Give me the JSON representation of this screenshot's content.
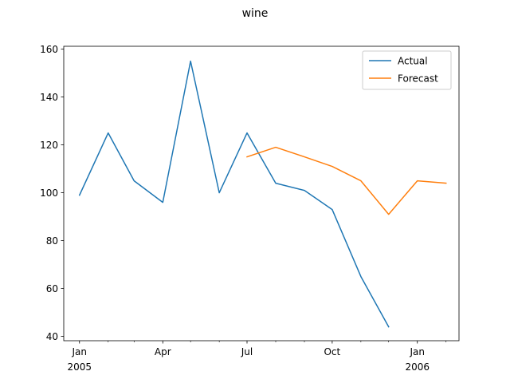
{
  "chart_data": {
    "type": "line",
    "title": "wine",
    "xlabel": "",
    "ylabel": "",
    "x_range": [
      "2004-12-15",
      "2006-02-15"
    ],
    "ylim": [
      38.2,
      161.2
    ],
    "y_ticks": [
      40,
      60,
      80,
      100,
      120,
      140,
      160
    ],
    "x_ticks_major": [
      {
        "date": "2005-01",
        "label": "Jan",
        "year_label": "2005"
      },
      {
        "date": "2005-04",
        "label": "Apr",
        "year_label": ""
      },
      {
        "date": "2005-07",
        "label": "Jul",
        "year_label": ""
      },
      {
        "date": "2005-10",
        "label": "Oct",
        "year_label": ""
      },
      {
        "date": "2006-01",
        "label": "Jan",
        "year_label": "2006"
      }
    ],
    "x_ticks_minor": [
      "2005-02",
      "2005-03",
      "2005-05",
      "2005-06",
      "2005-08",
      "2005-09",
      "2005-11",
      "2005-12",
      "2006-02"
    ],
    "legend_position": "top-right",
    "grid": false,
    "series": [
      {
        "name": "Actual",
        "color": "#1f77b4",
        "x": [
          "2005-01",
          "2005-02",
          "2005-03",
          "2005-04",
          "2005-05",
          "2005-06",
          "2005-07",
          "2005-08",
          "2005-09",
          "2005-10",
          "2005-11",
          "2005-12"
        ],
        "values": [
          99,
          125,
          105,
          96,
          155,
          100,
          125,
          104,
          101,
          93,
          65,
          44
        ]
      },
      {
        "name": "Forecast",
        "color": "#ff7f0e",
        "x": [
          "2005-07",
          "2005-08",
          "2005-09",
          "2005-10",
          "2005-11",
          "2005-12",
          "2006-01",
          "2006-02"
        ],
        "values": [
          115,
          119,
          115,
          111,
          105,
          91,
          105,
          104
        ]
      }
    ]
  }
}
